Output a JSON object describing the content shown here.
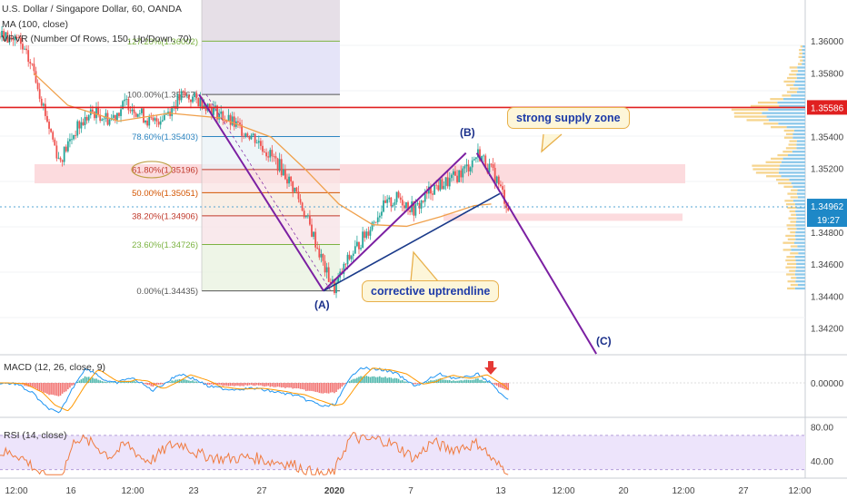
{
  "header": {
    "symbol_line": "U.S. Dollar / Singapore Dollar, 60, OANDA",
    "ma_line": "MA (100, close)",
    "vpvr_line": "VPVR (Number Of Rows, 150, Up/Down, 70)"
  },
  "price_axis": {
    "ticks": [
      "1.36000",
      "1.35800",
      "1.35400",
      "1.35200",
      "1.34800",
      "1.34600",
      "1.34400",
      "1.34200"
    ],
    "current_price": "1.34962",
    "countdown": "19:27",
    "resistance_price": "1.35586"
  },
  "time_axis": {
    "ticks": [
      "12:00",
      "16",
      "12:00",
      "23",
      "27",
      "2020",
      "7",
      "13",
      "12:00",
      "20",
      "12:00",
      "27",
      "12:00"
    ]
  },
  "fib_levels": [
    {
      "label": "127.20%(1.36002)",
      "value": 1.36002,
      "color": "#7cb342"
    },
    {
      "label": "100.00%(1.35667)",
      "value": 1.35667,
      "color": "#555555"
    },
    {
      "label": "78.60%(1.35403)",
      "value": 1.35403,
      "color": "#2e86c1"
    },
    {
      "label": "61.80%(1.35196)",
      "value": 1.35196,
      "color": "#c0392b"
    },
    {
      "label": "50.00%(1.35051)",
      "value": 1.35051,
      "color": "#d35400"
    },
    {
      "label": "38.20%(1.34906)",
      "value": 1.34906,
      "color": "#c0392b"
    },
    {
      "label": "23.60%(1.34726)",
      "value": 1.34726,
      "color": "#7cb342"
    },
    {
      "label": "0.00%(1.34435)",
      "value": 1.34435,
      "color": "#555555"
    }
  ],
  "annotations": {
    "supply_zone": "strong supply zone",
    "uptrendline": "corrective uptrendline",
    "wave_a": "(A)",
    "wave_b": "(B)",
    "wave_c": "(C)"
  },
  "macd": {
    "title": "MACD (12, 26, close, 9)",
    "axis_label": "0.00000"
  },
  "rsi": {
    "title": "RSI (14, close)",
    "upper": "80.00",
    "lower": "40.00"
  },
  "colors": {
    "up": "#26a69a",
    "down": "#ef5350",
    "ma": "#f0a04b",
    "wave_line": "#7b1fa2",
    "trend_line": "#1a3a8a",
    "resistance": "#e02020",
    "rsi_line": "#f07b3f",
    "rsi_band": "#ede4fb",
    "supply_zone": "#fbd5d8",
    "current_price_bg": "#1e88c7"
  },
  "chart_data": {
    "type": "candlestick",
    "symbol": "USDSGD",
    "timeframe": "60",
    "ylim": [
      1.3404,
      1.3626
    ],
    "x_tick_labels": [
      "12:00",
      "16",
      "12:00",
      "23",
      "27",
      "2020",
      "7",
      "13",
      "12:00",
      "20",
      "12:00",
      "27",
      "12:00"
    ],
    "price_path": [
      [
        0,
        1.3603
      ],
      [
        0.02,
        1.3601
      ],
      [
        0.04,
        1.3582
      ],
      [
        0.055,
        1.3552
      ],
      [
        0.07,
        1.3525
      ],
      [
        0.09,
        1.3545
      ],
      [
        0.11,
        1.3556
      ],
      [
        0.13,
        1.3551
      ],
      [
        0.15,
        1.3562
      ],
      [
        0.18,
        1.3548
      ],
      [
        0.2,
        1.3557
      ],
      [
        0.215,
        1.3566
      ],
      [
        0.24,
        1.3562
      ],
      [
        0.27,
        1.355
      ],
      [
        0.3,
        1.354
      ],
      [
        0.33,
        1.3522
      ],
      [
        0.35,
        1.3505
      ],
      [
        0.37,
        1.3478
      ],
      [
        0.385,
        1.3455
      ],
      [
        0.395,
        1.3445
      ],
      [
        0.41,
        1.3462
      ],
      [
        0.43,
        1.3478
      ],
      [
        0.45,
        1.3495
      ],
      [
        0.47,
        1.3502
      ],
      [
        0.49,
        1.3494
      ],
      [
        0.51,
        1.3508
      ],
      [
        0.53,
        1.3512
      ],
      [
        0.55,
        1.352
      ],
      [
        0.565,
        1.353
      ],
      [
        0.585,
        1.3515
      ],
      [
        0.6,
        1.3496
      ]
    ],
    "ma_path": [
      [
        0.04,
        1.358
      ],
      [
        0.08,
        1.356
      ],
      [
        0.14,
        1.355
      ],
      [
        0.2,
        1.3555
      ],
      [
        0.26,
        1.3552
      ],
      [
        0.32,
        1.354
      ],
      [
        0.36,
        1.352
      ],
      [
        0.4,
        1.3498
      ],
      [
        0.44,
        1.3485
      ],
      [
        0.48,
        1.3484
      ],
      [
        0.52,
        1.349
      ],
      [
        0.56,
        1.3497
      ],
      [
        0.58,
        1.3498
      ]
    ],
    "resistance": 1.35586,
    "current_price": 1.34962,
    "supply_zone": [
      1.3511,
      1.3523
    ],
    "lower_zone": [
      1.3488,
      1.3492
    ],
    "waves": {
      "A": {
        "x": 0.382,
        "price": 1.34435
      },
      "B": {
        "x": 0.563,
        "price": 1.353
      },
      "C": {
        "x": 0.704,
        "price": 1.3404
      }
    },
    "rsi_ylim": [
      20,
      90
    ]
  }
}
